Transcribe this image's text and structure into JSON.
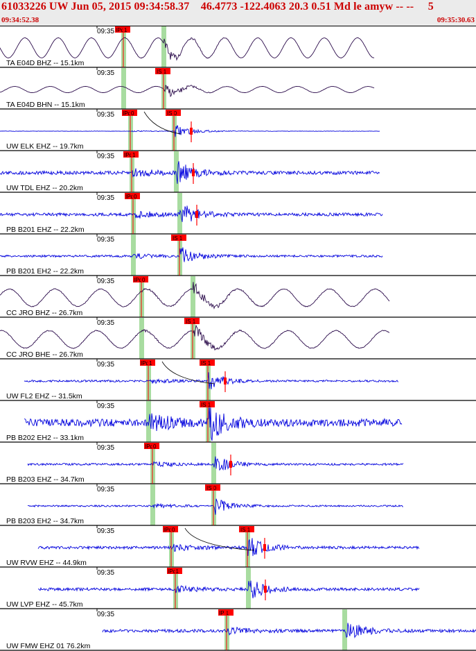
{
  "header": {
    "title": "61033226 UW Jun 05, 2015 09:34:58.37    46.4773 -122.4063 20.3 0.51 Md le amyw -- --     5",
    "start_time": "09:34:52.38",
    "end_time": "09:35:30.63"
  },
  "colors": {
    "header_bg": "#ebebeb",
    "header_text": "#cc0000",
    "pick_red": "#ff0000",
    "window_green": "#a8dca0",
    "trace_blue": "#0000dd",
    "trace_dark": "#2a0a4a"
  },
  "traces": [
    {
      "label": "TA E04D BHZ -- 15.1km",
      "time": "09:35",
      "color": "dark",
      "p_pick": "IPd1",
      "s_pick": null,
      "noise": 0.2,
      "swell": 16
    },
    {
      "label": "TA E04D BHN -- 15.1km",
      "time": "09:35",
      "color": "dark",
      "p_pick": null,
      "s_pick": "IS 1",
      "noise": 0.15,
      "swell": 5
    },
    {
      "label": "UW ELK EHZ -- 19.7km",
      "time": "09:35",
      "color": "blue",
      "p_pick": "IPd0",
      "s_pick": "IS 0",
      "noise": 0.3,
      "swell": 0
    },
    {
      "label": "UW TDL EHZ -- 20.2km",
      "time": "09:35",
      "color": "blue",
      "p_pick": "IPd1",
      "s_pick": null,
      "noise": 2.5,
      "swell": 0
    },
    {
      "label": "PB B201 EHZ -- 22.2km",
      "time": "09:35",
      "color": "blue",
      "p_pick": "IPd0",
      "s_pick": null,
      "noise": 2.2,
      "swell": 0
    },
    {
      "label": "PB B201 EH2 -- 22.2km",
      "time": "09:35",
      "color": "blue",
      "p_pick": null,
      "s_pick": "IS 1",
      "noise": 1.5,
      "swell": 0
    },
    {
      "label": "CC JRO BHZ -- 26.7km",
      "time": "09:35",
      "color": "dark",
      "p_pick": "IPd0",
      "s_pick": null,
      "noise": 0.6,
      "swell": 14
    },
    {
      "label": "CC JRO BHE -- 26.7km",
      "time": "09:35",
      "color": "dark",
      "p_pick": null,
      "s_pick": "IS 1",
      "noise": 0.6,
      "swell": 14
    },
    {
      "label": "UW FL2 EHZ -- 31.5km",
      "time": "09:35",
      "color": "blue",
      "p_pick": "IPd1",
      "s_pick": "IS 1",
      "noise": 1.4,
      "swell": 0
    },
    {
      "label": "PB B202 EH2 -- 33.1km",
      "time": "09:35",
      "color": "blue",
      "p_pick": null,
      "s_pick": "IS 1",
      "noise": 5.5,
      "swell": 0
    },
    {
      "label": "PB B203 EHZ -- 34.7km",
      "time": "09:35",
      "color": "blue",
      "p_pick": "IPd0",
      "s_pick": null,
      "noise": 1.5,
      "swell": 0
    },
    {
      "label": "PB B203 EH2 -- 34.7km",
      "time": "09:35",
      "color": "blue",
      "p_pick": null,
      "s_pick": "IS 0",
      "noise": 1.2,
      "swell": 0
    },
    {
      "label": "UW RVW EHZ -- 44.9km",
      "time": "09:35",
      "color": "blue",
      "p_pick": "IPd0",
      "s_pick": "IS 1",
      "noise": 2.0,
      "swell": 0
    },
    {
      "label": "UW LVP EHZ -- 45.7km",
      "time": "09:35",
      "color": "blue",
      "p_pick": "IPc1",
      "s_pick": null,
      "noise": 2.0,
      "swell": 0
    },
    {
      "label": "UW FMW EHZ 01 76.2km",
      "time": "09:35",
      "color": "blue",
      "p_pick": "IP 1",
      "s_pick": null,
      "noise": 2.2,
      "swell": 0
    }
  ]
}
